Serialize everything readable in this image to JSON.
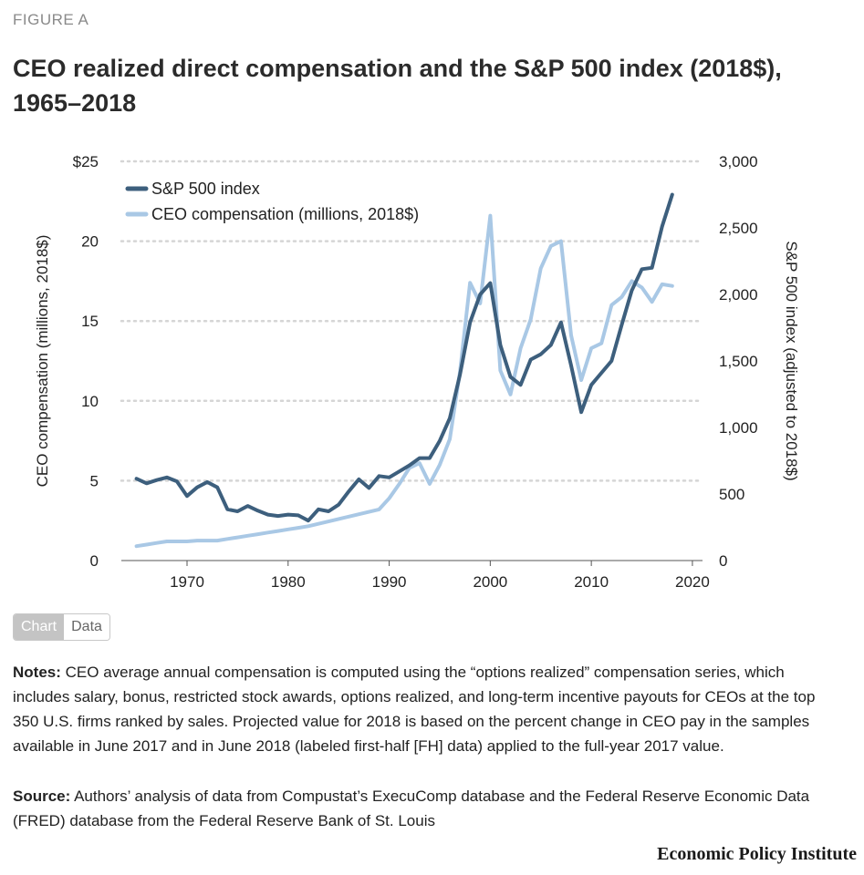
{
  "header": {
    "figure_label": "FIGURE A",
    "title": "CEO realized direct compensation and the S&P 500 index (2018$), 1965–2018"
  },
  "chart_data": {
    "type": "line",
    "x_ticks": [
      1970,
      1980,
      1990,
      2000,
      2010,
      2020
    ],
    "left_axis": {
      "label": "CEO compensation (millions, 2018$)",
      "range": [
        0,
        25
      ],
      "ticks": [
        0,
        5,
        10,
        15,
        20,
        25
      ],
      "tick_labels": [
        "0",
        "5",
        "10",
        "15",
        "20",
        "$25"
      ]
    },
    "right_axis": {
      "label": "S&P 500 index (adjusted to 2018$)",
      "range": [
        0,
        3000
      ],
      "ticks": [
        0,
        500,
        1000,
        1500,
        2000,
        2500,
        3000
      ],
      "tick_labels": [
        "0",
        "500",
        "1,000",
        "1,500",
        "2,000",
        "2,500",
        "3,000"
      ]
    },
    "xlim": [
      1963.5,
      2021
    ],
    "grid": "horizontal-dotted",
    "legend_position": "top-left",
    "series": [
      {
        "name": "S&P 500 index",
        "axis": "right",
        "color": "#3d5f7d",
        "x": [
          1965,
          1966,
          1967,
          1968,
          1969,
          1970,
          1971,
          1972,
          1973,
          1974,
          1975,
          1976,
          1977,
          1978,
          1979,
          1980,
          1981,
          1982,
          1983,
          1984,
          1985,
          1986,
          1987,
          1988,
          1989,
          1990,
          1991,
          1992,
          1993,
          1994,
          1995,
          1996,
          1997,
          1998,
          1999,
          2000,
          2001,
          2002,
          2003,
          2004,
          2005,
          2006,
          2007,
          2008,
          2009,
          2010,
          2011,
          2012,
          2013,
          2014,
          2015,
          2016,
          2017,
          2018
        ],
        "values": [
          615,
          580,
          605,
          625,
          595,
          485,
          550,
          590,
          550,
          385,
          370,
          410,
          375,
          345,
          335,
          345,
          340,
          300,
          385,
          370,
          420,
          520,
          610,
          545,
          635,
          625,
          670,
          715,
          770,
          770,
          900,
          1070,
          1395,
          1790,
          2000,
          2085,
          1620,
          1380,
          1320,
          1510,
          1550,
          1620,
          1790,
          1465,
          1115,
          1320,
          1410,
          1500,
          1770,
          2030,
          2190,
          2200,
          2510,
          2750
        ]
      },
      {
        "name": "CEO compensation (millions, 2018$)",
        "axis": "left",
        "color": "#a9c8e5",
        "x": [
          1965,
          1966,
          1967,
          1968,
          1969,
          1970,
          1971,
          1972,
          1973,
          1974,
          1975,
          1976,
          1977,
          1978,
          1979,
          1980,
          1981,
          1982,
          1983,
          1984,
          1985,
          1986,
          1987,
          1988,
          1989,
          1990,
          1991,
          1992,
          1993,
          1994,
          1995,
          1996,
          1997,
          1998,
          1999,
          2000,
          2001,
          2002,
          2003,
          2004,
          2005,
          2006,
          2007,
          2008,
          2009,
          2010,
          2011,
          2012,
          2013,
          2014,
          2015,
          2016,
          2017,
          2018
        ],
        "values": [
          0.9,
          1.0,
          1.1,
          1.2,
          1.2,
          1.2,
          1.25,
          1.25,
          1.25,
          1.35,
          1.45,
          1.55,
          1.65,
          1.75,
          1.85,
          1.95,
          2.05,
          2.15,
          2.3,
          2.45,
          2.6,
          2.75,
          2.9,
          3.05,
          3.2,
          3.9,
          4.8,
          5.8,
          6.1,
          4.8,
          6.0,
          7.6,
          11.8,
          17.4,
          16.1,
          21.6,
          11.9,
          10.4,
          13.3,
          15.1,
          18.3,
          19.7,
          20.0,
          14.1,
          11.3,
          13.3,
          13.6,
          16.0,
          16.5,
          17.5,
          17.1,
          16.2,
          17.3,
          17.2
        ]
      }
    ]
  },
  "controls": {
    "chart_label": "Chart",
    "data_label": "Data"
  },
  "footer": {
    "notes_label": "Notes:",
    "notes_text": " CEO average annual compensation is computed using the “options realized” compensation series, which includes salary, bonus, restricted stock awards, options realized, and long-term incentive payouts for CEOs at the top 350 U.S. firms ranked by sales. Projected value for 2018 is based on the percent change in CEO pay in the samples available in June 2017 and in June 2018 (labeled first-half [FH] data) applied to the full-year 2017 value.",
    "source_label": "Source:",
    "source_text": " Authors’ analysis of data from Compustat’s ExecuComp database and the Federal Reserve Economic Data (FRED) database from the Federal Reserve Bank of St. Louis",
    "brand": "Economic Policy Institute"
  }
}
